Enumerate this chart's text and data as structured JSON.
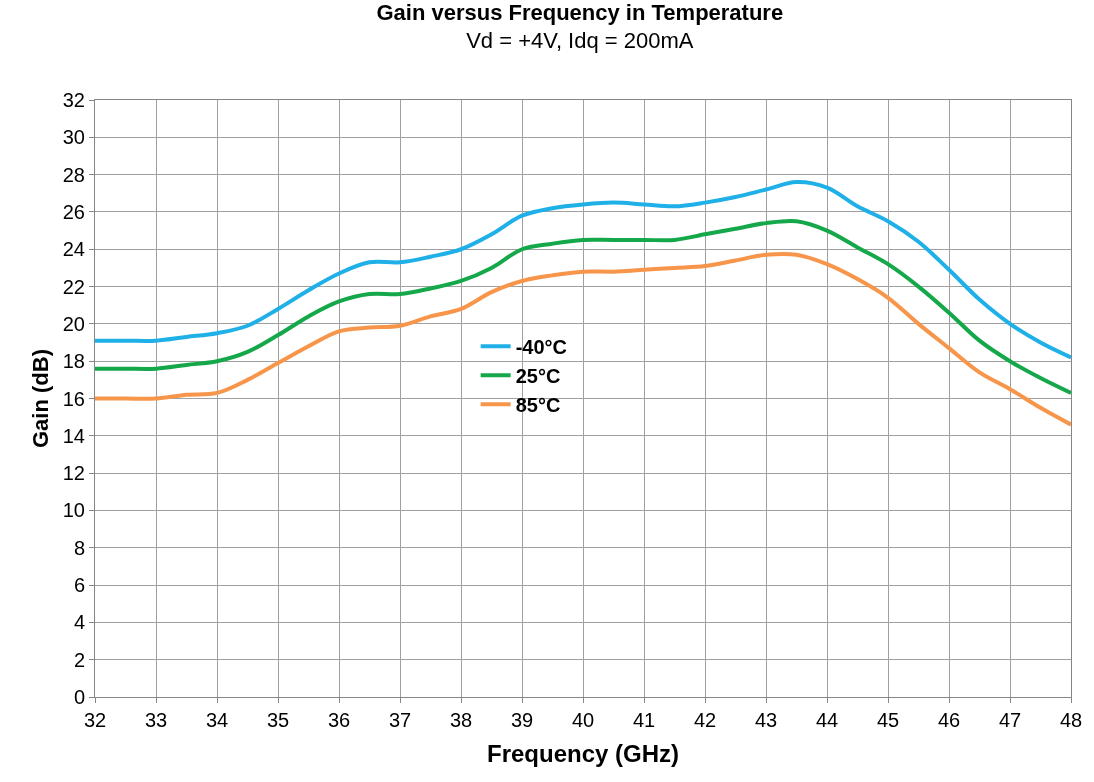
{
  "chart_data": {
    "type": "line",
    "title": "Gain versus Frequency in Temperature",
    "subtitle": "Vd = +4V, Idq = 200mA",
    "xlabel": "Frequency (GHz)",
    "ylabel": "Gain (dB)",
    "x": [
      32,
      32.5,
      33,
      33.5,
      34,
      34.5,
      35,
      35.5,
      36,
      36.5,
      37,
      37.5,
      38,
      38.5,
      39,
      39.5,
      40,
      40.5,
      41,
      41.5,
      42,
      42.5,
      43,
      43.5,
      44,
      44.5,
      45,
      45.5,
      46,
      46.5,
      47,
      47.5,
      48
    ],
    "series": [
      {
        "name": "-40°C",
        "color": "#1fb0e8",
        "values": [
          19.1,
          19.1,
          19.1,
          19.3,
          19.5,
          19.9,
          20.8,
          21.8,
          22.7,
          23.3,
          23.3,
          23.6,
          24.0,
          24.8,
          25.8,
          26.2,
          26.4,
          26.5,
          26.4,
          26.3,
          26.5,
          26.8,
          27.2,
          27.6,
          27.3,
          26.3,
          25.5,
          24.4,
          22.9,
          21.3,
          20.0,
          19.0,
          18.2
        ]
      },
      {
        "name": "25°C",
        "color": "#14a84a",
        "values": [
          17.6,
          17.6,
          17.6,
          17.8,
          18.0,
          18.5,
          19.4,
          20.4,
          21.2,
          21.6,
          21.6,
          21.9,
          22.3,
          23.0,
          24.0,
          24.3,
          24.5,
          24.5,
          24.5,
          24.5,
          24.8,
          25.1,
          25.4,
          25.5,
          25.0,
          24.1,
          23.2,
          22.0,
          20.6,
          19.1,
          18.0,
          17.1,
          16.3
        ]
      },
      {
        "name": "85°C",
        "color": "#f7964a",
        "values": [
          16.0,
          16.0,
          16.0,
          16.2,
          16.3,
          17.0,
          17.9,
          18.8,
          19.6,
          19.8,
          19.9,
          20.4,
          20.8,
          21.7,
          22.3,
          22.6,
          22.8,
          22.8,
          22.9,
          23.0,
          23.1,
          23.4,
          23.7,
          23.7,
          23.2,
          22.4,
          21.4,
          20.0,
          18.7,
          17.4,
          16.5,
          15.5,
          14.6
        ]
      }
    ],
    "xlim": [
      32,
      48
    ],
    "xticks": [
      32,
      33,
      34,
      35,
      36,
      37,
      38,
      39,
      40,
      41,
      42,
      43,
      44,
      45,
      46,
      47,
      48
    ],
    "ylim": [
      0,
      32
    ],
    "yticks": [
      0,
      2,
      4,
      6,
      8,
      10,
      12,
      14,
      16,
      18,
      20,
      22,
      24,
      26,
      28,
      30,
      32
    ],
    "grid": true,
    "legend": "center",
    "line_style": "solid"
  }
}
